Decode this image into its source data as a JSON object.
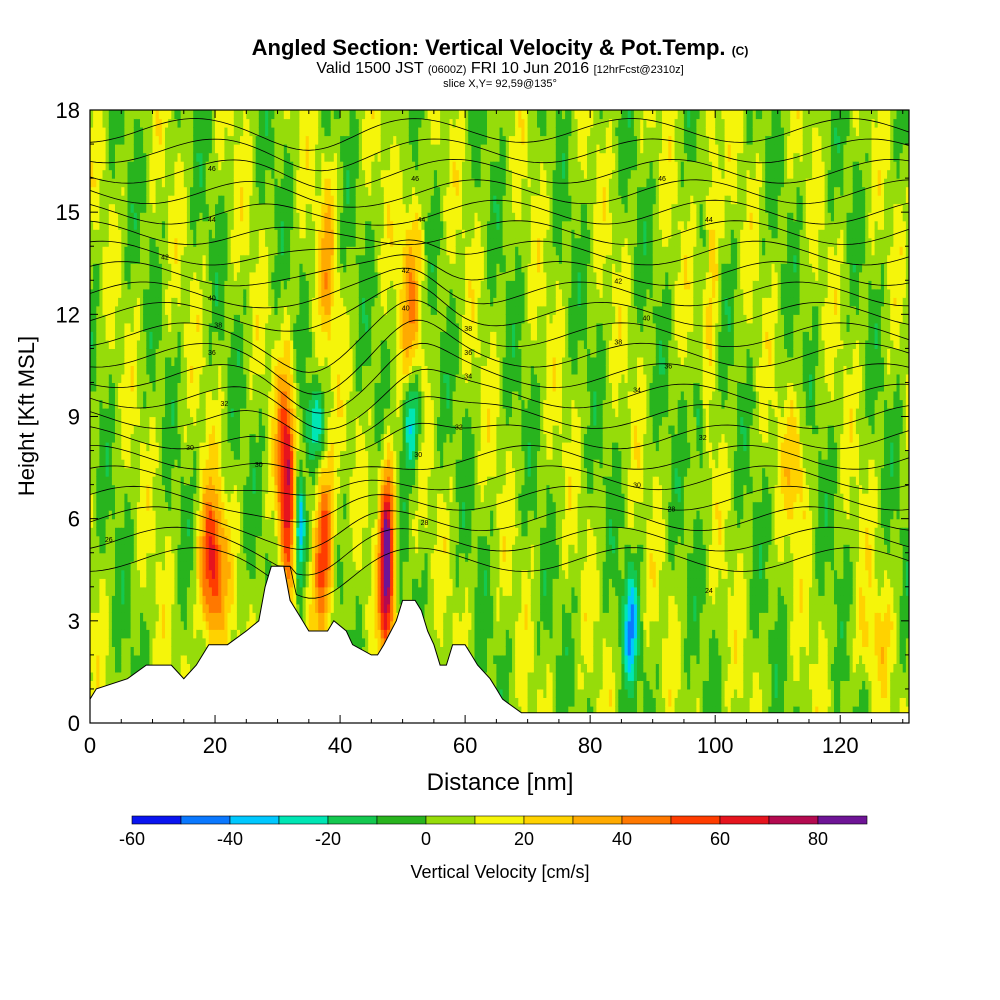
{
  "title": {
    "main": "Angled Section: Vertical Velocity & Pot.Temp.",
    "main_unit": "(C)",
    "valid_prefix": "Valid 1500 JST",
    "valid_utc": "(0600Z)",
    "valid_date": "FRI 10 Jun 2016",
    "valid_fcst": "[12hrFcst@2310z]",
    "slice": "slice X,Y= 92,59@135°"
  },
  "chart_data": {
    "type": "heatmap",
    "xlabel": "Distance [nm]",
    "ylabel": "Height [Kft MSL]",
    "xlim": [
      0,
      131
    ],
    "ylim": [
      0,
      18
    ],
    "x_ticks": [
      "0",
      "20",
      "40",
      "60",
      "80",
      "100",
      "120"
    ],
    "y_ticks": [
      "0",
      "3",
      "6",
      "9",
      "12",
      "15",
      "18"
    ],
    "colorbar": {
      "label": "Vertical Velocity [cm/s]",
      "ticks": [
        "-60",
        "-40",
        "-20",
        "0",
        "20",
        "40",
        "60",
        "80"
      ],
      "bounds": [
        -60,
        -50,
        -40,
        -30,
        -20,
        -10,
        0,
        10,
        20,
        30,
        40,
        50,
        60,
        70,
        80,
        90
      ],
      "colors": [
        "#0a14f0",
        "#0a78ff",
        "#00c8ff",
        "#00e6b4",
        "#14c850",
        "#28b41e",
        "#96dc0a",
        "#f5f50a",
        "#ffd200",
        "#ffaa00",
        "#ff7800",
        "#ff3c00",
        "#e6141e",
        "#b40a50",
        "#6e1496"
      ]
    },
    "terrain_kft": [
      [
        0,
        0.7
      ],
      [
        1,
        1.0
      ],
      [
        6,
        1.3
      ],
      [
        9,
        1.7
      ],
      [
        13,
        1.7
      ],
      [
        15,
        1.3
      ],
      [
        17,
        1.7
      ],
      [
        19,
        2.3
      ],
      [
        22,
        2.3
      ],
      [
        25,
        2.7
      ],
      [
        27,
        3.0
      ],
      [
        28,
        4.0
      ],
      [
        29,
        4.6
      ],
      [
        31,
        4.6
      ],
      [
        32,
        3.6
      ],
      [
        34,
        3.0
      ],
      [
        35,
        2.7
      ],
      [
        37,
        2.7
      ],
      [
        38,
        2.7
      ],
      [
        39,
        3.0
      ],
      [
        41,
        2.7
      ],
      [
        42,
        2.3
      ],
      [
        45,
        2.0
      ],
      [
        46,
        2.0
      ],
      [
        47,
        2.3
      ],
      [
        49,
        3.0
      ],
      [
        50,
        3.6
      ],
      [
        52,
        3.6
      ],
      [
        53,
        3.3
      ],
      [
        54,
        2.7
      ],
      [
        55,
        2.3
      ],
      [
        56,
        1.7
      ],
      [
        57,
        1.7
      ],
      [
        58,
        2.3
      ],
      [
        60,
        2.3
      ],
      [
        61,
        2.0
      ],
      [
        62,
        1.7
      ],
      [
        64,
        1.3
      ],
      [
        65,
        1.0
      ],
      [
        66,
        0.7
      ],
      [
        69,
        0.3
      ],
      [
        71,
        0.3
      ],
      [
        131,
        0.3
      ]
    ],
    "updrafts": [
      {
        "x": 19.5,
        "z": 4.5,
        "peak": 60,
        "wx": 2.0,
        "wz": 2.2
      },
      {
        "x": 31.5,
        "z": 7.2,
        "peak": 65,
        "wx": 1.5,
        "wz": 3.0
      },
      {
        "x": 37.5,
        "z": 5.2,
        "peak": 55,
        "wx": 1.7,
        "wz": 2.6
      },
      {
        "x": 47.5,
        "z": 4.8,
        "peak": 85,
        "wx": 1.2,
        "wz": 2.8
      },
      {
        "x": 51.5,
        "z": 12.5,
        "peak": 28,
        "wx": 1.8,
        "wz": 3.5
      },
      {
        "x": 38.0,
        "z": 13.5,
        "peak": 22,
        "wx": 1.4,
        "wz": 3.0
      },
      {
        "x": 99.5,
        "z": 14.5,
        "peak": 25,
        "wx": 1.2,
        "wz": 3.5
      },
      {
        "x": 113.0,
        "z": 7.5,
        "peak": 22,
        "wx": 1.8,
        "wz": 1.8
      },
      {
        "x": 125.0,
        "z": 2.5,
        "peak": 15,
        "wx": 3.0,
        "wz": 1.5
      }
    ],
    "downdrafts": [
      {
        "x": 33.5,
        "z": 5.8,
        "peak": -58,
        "wx": 0.9,
        "wz": 1.8
      },
      {
        "x": 36.0,
        "z": 8.8,
        "peak": -30,
        "wx": 1.5,
        "wz": 1.0
      },
      {
        "x": 51.5,
        "z": 9.0,
        "peak": -45,
        "wx": 1.4,
        "wz": 1.5
      },
      {
        "x": 86.5,
        "z": 2.8,
        "peak": -38,
        "wx": 1.3,
        "wz": 1.6
      },
      {
        "x": 97.5,
        "z": 9.0,
        "peak": -28,
        "wx": 0.8,
        "wz": 1.5
      }
    ],
    "theta_labels": [
      {
        "text": "46",
        "x": 19.5,
        "z": 16.3
      },
      {
        "text": "44",
        "x": 19.5,
        "z": 14.8
      },
      {
        "text": "46",
        "x": 52.0,
        "z": 16.0
      },
      {
        "text": "44",
        "x": 53.0,
        "z": 14.8
      },
      {
        "text": "46",
        "x": 91.5,
        "z": 16.0
      },
      {
        "text": "44",
        "x": 99.0,
        "z": 14.8
      },
      {
        "text": "42",
        "x": 12.0,
        "z": 13.7
      },
      {
        "text": "42",
        "x": 50.5,
        "z": 13.3
      },
      {
        "text": "42",
        "x": 84.5,
        "z": 13.0
      },
      {
        "text": "40",
        "x": 19.5,
        "z": 12.5
      },
      {
        "text": "40",
        "x": 50.5,
        "z": 12.2
      },
      {
        "text": "40",
        "x": 89.0,
        "z": 11.9
      },
      {
        "text": "38",
        "x": 20.5,
        "z": 11.7
      },
      {
        "text": "38",
        "x": 60.5,
        "z": 11.6
      },
      {
        "text": "38",
        "x": 84.5,
        "z": 11.2
      },
      {
        "text": "36",
        "x": 19.5,
        "z": 10.9
      },
      {
        "text": "36",
        "x": 60.5,
        "z": 10.9
      },
      {
        "text": "36",
        "x": 92.5,
        "z": 10.5
      },
      {
        "text": "34",
        "x": 60.5,
        "z": 10.2
      },
      {
        "text": "34",
        "x": 87.5,
        "z": 9.8
      },
      {
        "text": "32",
        "x": 21.5,
        "z": 9.4
      },
      {
        "text": "32",
        "x": 59.0,
        "z": 8.7
      },
      {
        "text": "32",
        "x": 98.0,
        "z": 8.4
      },
      {
        "text": "30",
        "x": 16.0,
        "z": 8.1
      },
      {
        "text": "30",
        "x": 52.5,
        "z": 7.9
      },
      {
        "text": "30",
        "x": 27.0,
        "z": 7.6
      },
      {
        "text": "30",
        "x": 87.5,
        "z": 7.0
      },
      {
        "text": "28",
        "x": 93.0,
        "z": 6.3
      },
      {
        "text": "28",
        "x": 53.5,
        "z": 5.9
      },
      {
        "text": "26",
        "x": 3.0,
        "z": 5.4
      },
      {
        "text": "24",
        "x": 99.0,
        "z": 3.9
      }
    ]
  }
}
